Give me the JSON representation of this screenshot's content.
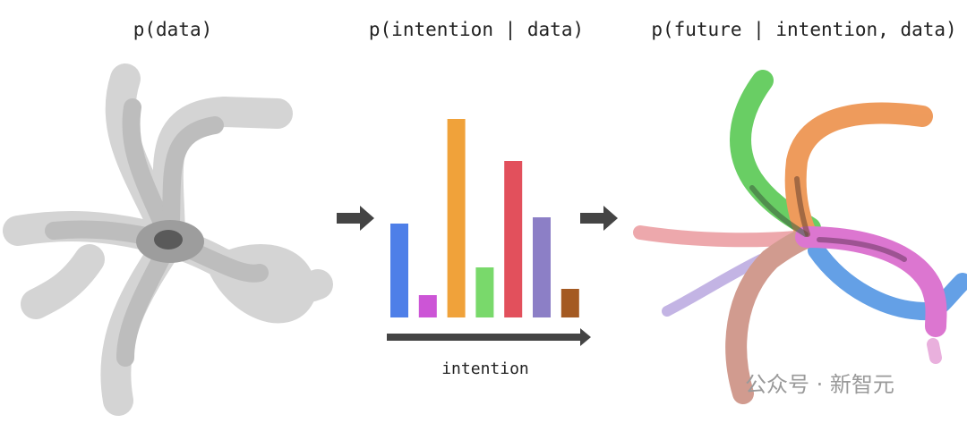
{
  "titles": [
    "p(data)",
    "p(intention | data)",
    "p(future | intention, data)"
  ],
  "intention_bars": {
    "values": [
      105,
      25,
      222,
      56,
      175,
      112,
      32
    ],
    "colors": [
      "#4e7fe8",
      "#cc55d6",
      "#f0a23a",
      "#79d96b",
      "#e2505c",
      "#8c7fc6",
      "#a45a22"
    ]
  },
  "axis_label": "intention",
  "watermark": "公众号 · 新智元"
}
